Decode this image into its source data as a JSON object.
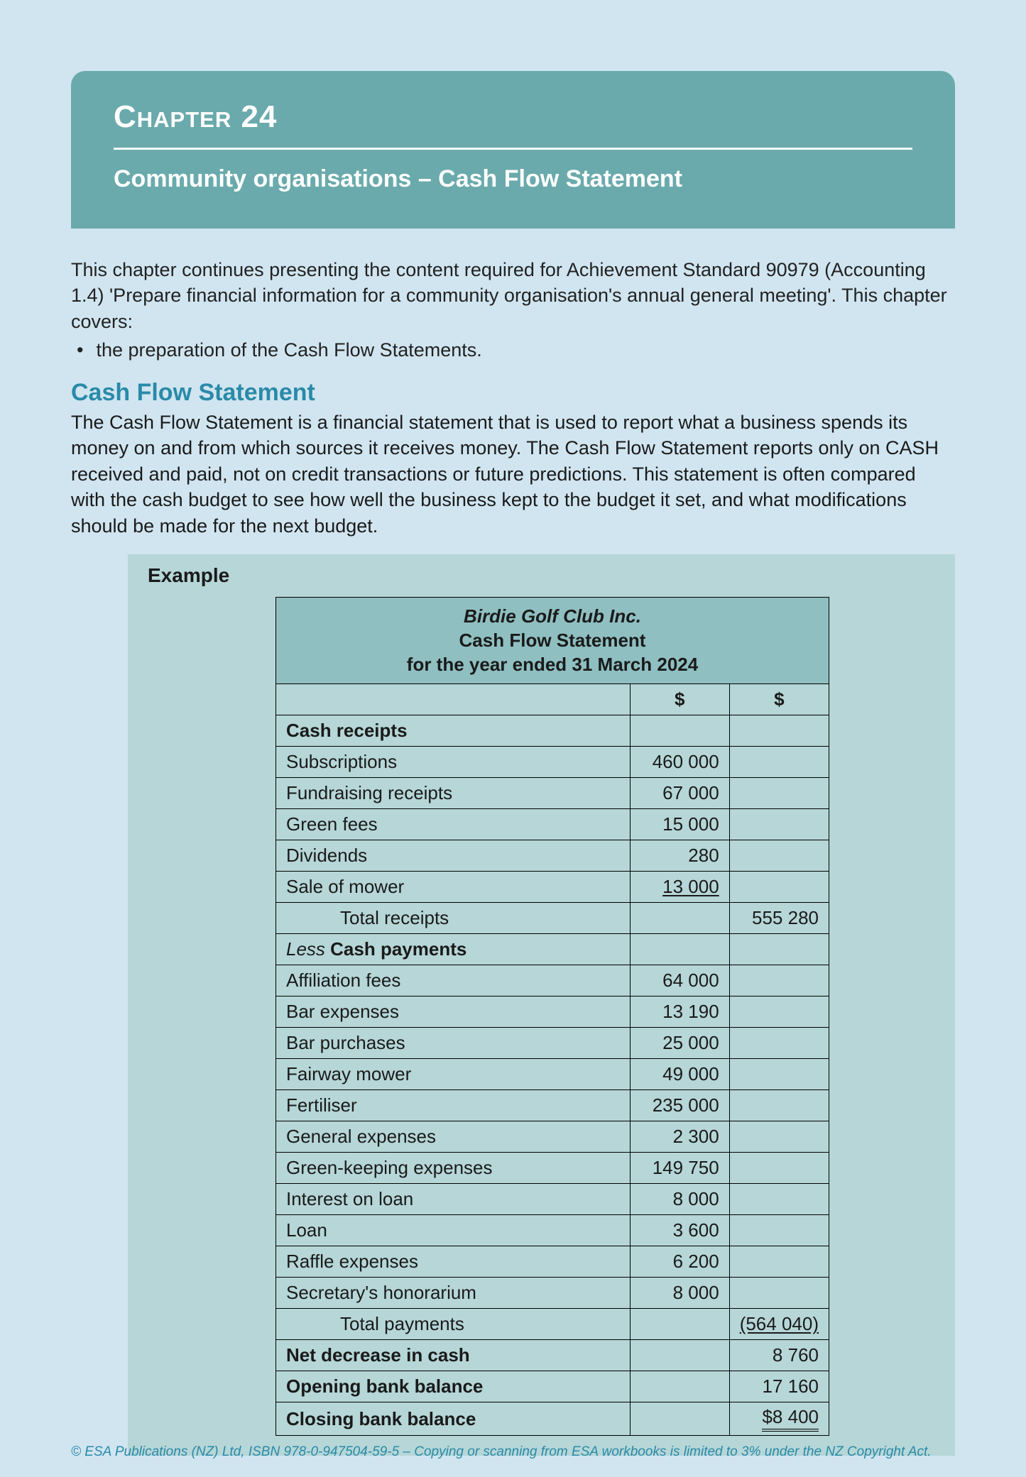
{
  "header": {
    "chapter_label": "Chapter",
    "chapter_number": "24",
    "title": "Community organisations – Cash Flow Statement"
  },
  "intro": {
    "p1": "This chapter continues presenting the content required for Achievement Standard 90979 (Accounting 1.4) 'Prepare financial information for a community organisation's annual general meeting'. This chapter covers:",
    "bullet1": "the preparation of the Cash Flow Statements."
  },
  "section": {
    "heading": "Cash Flow Statement",
    "body": "The Cash Flow Statement is a financial statement that is used to report what a business spends its money on and from which sources it receives money. The Cash Flow Statement reports only on CASH received and paid, not on credit transactions or future predictions. This statement is often compared with the cash budget to see how well the business kept to the budget it set, and what modifications should be made for the next budget."
  },
  "example_label": "Example",
  "table": {
    "org": "Birdie Golf Club Inc.",
    "stmt": "Cash Flow Statement",
    "period": "for the year ended 31 March 2024",
    "currency": "$",
    "receipts_header": "Cash receipts",
    "receipts": [
      {
        "label": "Subscriptions",
        "amount": "460 000"
      },
      {
        "label": "Fundraising receipts",
        "amount": "67 000"
      },
      {
        "label": "Green fees",
        "amount": "15 000"
      },
      {
        "label": "Dividends",
        "amount": "280"
      },
      {
        "label": "Sale of mower",
        "amount": "13 000",
        "underline": true
      }
    ],
    "total_receipts_label": "Total receipts",
    "total_receipts": "555 280",
    "payments_header_prefix": "Less",
    "payments_header": "Cash payments",
    "payments": [
      {
        "label": "Affiliation fees",
        "amount": "64 000"
      },
      {
        "label": "Bar expenses",
        "amount": "13 190"
      },
      {
        "label": "Bar purchases",
        "amount": "25 000"
      },
      {
        "label": "Fairway mower",
        "amount": "49 000"
      },
      {
        "label": "Fertiliser",
        "amount": "235 000"
      },
      {
        "label": "General expenses",
        "amount": "2 300"
      },
      {
        "label": "Green-keeping expenses",
        "amount": "149 750"
      },
      {
        "label": "Interest on loan",
        "amount": "8 000"
      },
      {
        "label": "Loan",
        "amount": "3 600"
      },
      {
        "label": "Raffle expenses",
        "amount": "6 200"
      },
      {
        "label": "Secretary's honorarium",
        "amount": "8 000"
      }
    ],
    "total_payments_label": "Total payments",
    "total_payments": "(564 040)",
    "net_label": "Net decrease in cash",
    "net": "8 760",
    "opening_label": "Opening bank balance",
    "opening": "17 160",
    "closing_label": "Closing bank balance",
    "closing": "$8 400"
  },
  "footer": "© ESA Publications (NZ) Ltd, ISBN 978-0-947504-59-5 –  Copying or scanning from ESA workbooks is limited to 3% under the NZ Copyright Act.",
  "colors": {
    "page_bg": "#d0e5f0",
    "header_bg": "#6aaaac",
    "example_bg": "#b6d6d7",
    "table_header_bg": "#8fbfc1",
    "accent_text": "#2a8aa8",
    "border": "#000000"
  }
}
